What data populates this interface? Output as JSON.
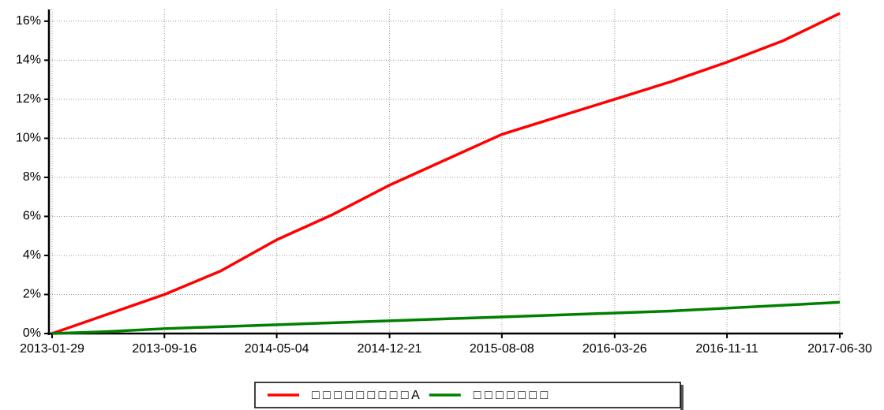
{
  "chart_data": {
    "type": "line",
    "x": [
      "2013-01-29",
      "2013-05-24",
      "2013-09-16",
      "2014-01-09",
      "2014-05-04",
      "2014-08-27",
      "2014-12-21",
      "2015-04-15",
      "2015-08-08",
      "2015-12-01",
      "2016-03-26",
      "2016-07-19",
      "2016-11-11",
      "2017-03-06",
      "2017-06-30"
    ],
    "series": [
      {
        "name": "□ □ □ □ □ □ □ □ □ A",
        "color": "#ff0000",
        "values": [
          0.0,
          1.0,
          2.0,
          3.2,
          4.8,
          6.1,
          7.6,
          8.9,
          10.2,
          11.1,
          12.0,
          12.9,
          13.9,
          15.0,
          16.4
        ]
      },
      {
        "name": "□ □ □ □ □ □ □",
        "color": "#008000",
        "values": [
          0.0,
          0.1,
          0.25,
          0.35,
          0.45,
          0.55,
          0.65,
          0.75,
          0.85,
          0.95,
          1.05,
          1.15,
          1.3,
          1.45,
          1.6
        ]
      }
    ],
    "xlim": [
      "2013-01-29",
      "2017-06-30"
    ],
    "xticks": [
      "2013-01-29",
      "2013-09-16",
      "2014-05-04",
      "2014-12-21",
      "2015-08-08",
      "2016-03-26",
      "2016-11-11",
      "2017-06-30"
    ],
    "ylim": [
      0,
      16.6
    ],
    "yticks": [
      {
        "value": 0,
        "label": "0%"
      },
      {
        "value": 2,
        "label": "2%"
      },
      {
        "value": 4,
        "label": "4%"
      },
      {
        "value": 6,
        "label": "6%"
      },
      {
        "value": 8,
        "label": "8%"
      },
      {
        "value": 10,
        "label": "10%"
      },
      {
        "value": 12,
        "label": "12%"
      },
      {
        "value": 14,
        "label": "14%"
      },
      {
        "value": 16,
        "label": "16%"
      }
    ],
    "grid": true,
    "legend": "bottom"
  }
}
